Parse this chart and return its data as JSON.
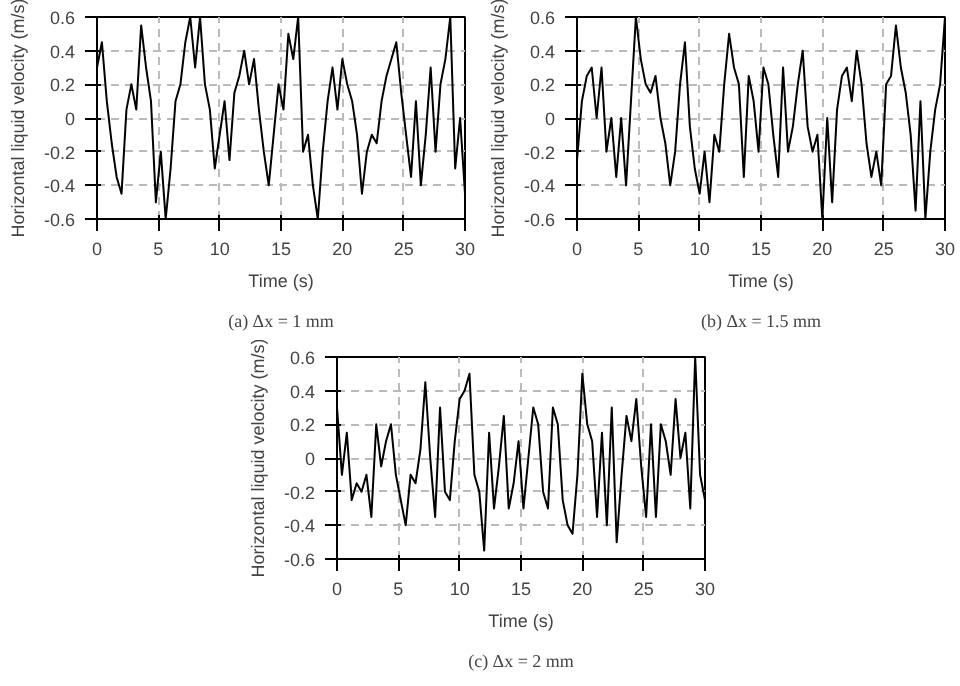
{
  "chart_data": [
    {
      "type": "line",
      "xlabel": "Time (s)",
      "ylabel": "Horizontal liquid velocity (m/s)",
      "annotations": [
        "(a) Δx = 1 mm"
      ],
      "xlim": [
        0,
        30
      ],
      "ylim": [
        -0.6,
        0.6
      ],
      "xticks": [
        0,
        5,
        10,
        15,
        20,
        25,
        30
      ],
      "yticks": [
        -0.6,
        -0.4,
        -0.2,
        0,
        0.2,
        0.4,
        0.6
      ],
      "grid": true,
      "x": [
        0,
        0.4,
        0.8,
        1.2,
        1.6,
        2,
        2.4,
        2.8,
        3.2,
        3.6,
        4,
        4.4,
        4.8,
        5.2,
        5.6,
        6,
        6.4,
        6.8,
        7.2,
        7.6,
        8,
        8.4,
        8.8,
        9.2,
        9.6,
        10,
        10.4,
        10.8,
        11.2,
        11.6,
        12,
        12.4,
        12.8,
        13.2,
        13.6,
        14,
        14.4,
        14.8,
        15.2,
        15.6,
        16,
        16.4,
        16.8,
        17.2,
        17.6,
        18,
        18.4,
        18.8,
        19.2,
        19.6,
        20,
        20.4,
        20.8,
        21.2,
        21.6,
        22,
        22.4,
        22.8,
        23.2,
        23.6,
        24,
        24.4,
        24.8,
        25.2,
        25.6,
        26,
        26.4,
        26.8,
        27.2,
        27.6,
        28,
        28.4,
        28.8,
        29.2,
        29.6,
        30
      ],
      "series": [
        {
          "color": "#000000",
          "values": [
            0.3,
            0.45,
            0.1,
            -0.15,
            -0.35,
            -0.45,
            0.05,
            0.2,
            0.05,
            0.55,
            0.3,
            0.1,
            -0.5,
            -0.2,
            -0.6,
            -0.3,
            0.1,
            0.2,
            0.45,
            0.6,
            0.3,
            0.6,
            0.2,
            0.05,
            -0.3,
            -0.1,
            0.1,
            -0.25,
            0.15,
            0.25,
            0.4,
            0.2,
            0.35,
            0.05,
            -0.2,
            -0.4,
            -0.1,
            0.2,
            0.05,
            0.5,
            0.35,
            0.6,
            -0.2,
            -0.1,
            -0.4,
            -0.6,
            -0.2,
            0.1,
            0.3,
            0.05,
            0.35,
            0.2,
            0.1,
            -0.1,
            -0.45,
            -0.2,
            -0.1,
            -0.15,
            0.1,
            0.25,
            0.35,
            0.45,
            0.15,
            -0.1,
            -0.35,
            0.1,
            -0.4,
            -0.1,
            0.3,
            -0.2,
            0.2,
            0.35,
            0.6,
            -0.3,
            0.0,
            -0.45
          ]
        }
      ]
    },
    {
      "type": "line",
      "xlabel": "Time (s)",
      "ylabel": "Horizontal liquid velocity (m/s)",
      "annotations": [
        "(b) Δx = 1.5 mm"
      ],
      "xlim": [
        0,
        30
      ],
      "ylim": [
        -0.6,
        0.6
      ],
      "xticks": [
        0,
        5,
        10,
        15,
        20,
        25,
        30
      ],
      "yticks": [
        -0.6,
        -0.4,
        -0.2,
        0,
        0.2,
        0.4,
        0.6
      ],
      "grid": true,
      "x": [
        0,
        0.4,
        0.8,
        1.2,
        1.6,
        2,
        2.4,
        2.8,
        3.2,
        3.6,
        4,
        4.4,
        4.8,
        5.2,
        5.6,
        6,
        6.4,
        6.8,
        7.2,
        7.6,
        8,
        8.4,
        8.8,
        9.2,
        9.6,
        10,
        10.4,
        10.8,
        11.2,
        11.6,
        12,
        12.4,
        12.8,
        13.2,
        13.6,
        14,
        14.4,
        14.8,
        15.2,
        15.6,
        16,
        16.4,
        16.8,
        17.2,
        17.6,
        18,
        18.4,
        18.8,
        19.2,
        19.6,
        20,
        20.4,
        20.8,
        21.2,
        21.6,
        22,
        22.4,
        22.8,
        23.2,
        23.6,
        24,
        24.4,
        24.8,
        25.2,
        25.6,
        26,
        26.4,
        26.8,
        27.2,
        27.6,
        28,
        28.4,
        28.8,
        29.2,
        29.6,
        30
      ],
      "series": [
        {
          "color": "#000000",
          "values": [
            -0.25,
            0.1,
            0.25,
            0.3,
            0.0,
            0.3,
            -0.2,
            0.0,
            -0.35,
            0.0,
            -0.4,
            0.1,
            0.6,
            0.35,
            0.2,
            0.15,
            0.25,
            0.0,
            -0.15,
            -0.4,
            -0.2,
            0.2,
            0.45,
            -0.05,
            -0.3,
            -0.45,
            -0.2,
            -0.5,
            -0.1,
            -0.2,
            0.2,
            0.5,
            0.3,
            0.2,
            -0.35,
            0.25,
            0.1,
            -0.2,
            0.3,
            0.2,
            -0.1,
            -0.35,
            0.3,
            -0.2,
            -0.05,
            0.2,
            0.4,
            -0.05,
            -0.2,
            -0.1,
            -0.6,
            0.0,
            -0.5,
            0.05,
            0.25,
            0.3,
            0.1,
            0.4,
            0.2,
            -0.15,
            -0.35,
            -0.2,
            -0.4,
            0.2,
            0.25,
            0.55,
            0.3,
            0.15,
            -0.1,
            -0.55,
            0.1,
            -0.6,
            -0.2,
            0.05,
            0.2,
            0.6
          ]
        }
      ]
    },
    {
      "type": "line",
      "xlabel": "Time (s)",
      "ylabel": "Horizontal liquid velocity (m/s)",
      "annotations": [
        "(c) Δx = 2 mm"
      ],
      "xlim": [
        0,
        30
      ],
      "ylim": [
        -0.6,
        0.6
      ],
      "xticks": [
        0,
        5,
        10,
        15,
        20,
        25,
        30
      ],
      "yticks": [
        -0.6,
        -0.4,
        -0.2,
        0,
        0.2,
        0.4,
        0.6
      ],
      "grid": true,
      "x": [
        0,
        0.4,
        0.8,
        1.2,
        1.6,
        2,
        2.4,
        2.8,
        3.2,
        3.6,
        4,
        4.4,
        4.8,
        5.2,
        5.6,
        6,
        6.4,
        6.8,
        7.2,
        7.6,
        8,
        8.4,
        8.8,
        9.2,
        9.6,
        10,
        10.4,
        10.8,
        11.2,
        11.6,
        12,
        12.4,
        12.8,
        13.2,
        13.6,
        14,
        14.4,
        14.8,
        15.2,
        15.6,
        16,
        16.4,
        16.8,
        17.2,
        17.6,
        18,
        18.4,
        18.8,
        19.2,
        19.6,
        20,
        20.4,
        20.8,
        21.2,
        21.6,
        22,
        22.4,
        22.8,
        23.2,
        23.6,
        24,
        24.4,
        24.8,
        25.2,
        25.6,
        26,
        26.4,
        26.8,
        27.2,
        27.6,
        28,
        28.4,
        28.8,
        29.2,
        29.6,
        30
      ],
      "series": [
        {
          "color": "#000000",
          "values": [
            0.3,
            -0.1,
            0.15,
            -0.25,
            -0.15,
            -0.2,
            -0.1,
            -0.35,
            0.2,
            -0.05,
            0.1,
            0.2,
            -0.1,
            -0.25,
            -0.4,
            -0.1,
            -0.15,
            0.05,
            0.45,
            0.0,
            -0.35,
            0.3,
            -0.2,
            -0.25,
            0.1,
            0.35,
            0.4,
            0.5,
            -0.1,
            -0.2,
            -0.55,
            0.15,
            -0.3,
            -0.05,
            0.25,
            -0.3,
            -0.15,
            0.1,
            -0.3,
            0.0,
            0.3,
            0.2,
            -0.2,
            -0.3,
            0.3,
            0.2,
            -0.25,
            -0.4,
            -0.45,
            -0.1,
            0.5,
            0.2,
            0.1,
            -0.35,
            0.15,
            -0.4,
            0.3,
            -0.5,
            -0.1,
            0.25,
            0.1,
            0.35,
            -0.05,
            -0.35,
            0.2,
            -0.35,
            0.2,
            0.1,
            -0.1,
            0.35,
            0.0,
            0.15,
            -0.3,
            0.6,
            -0.1,
            -0.25
          ]
        }
      ]
    }
  ]
}
